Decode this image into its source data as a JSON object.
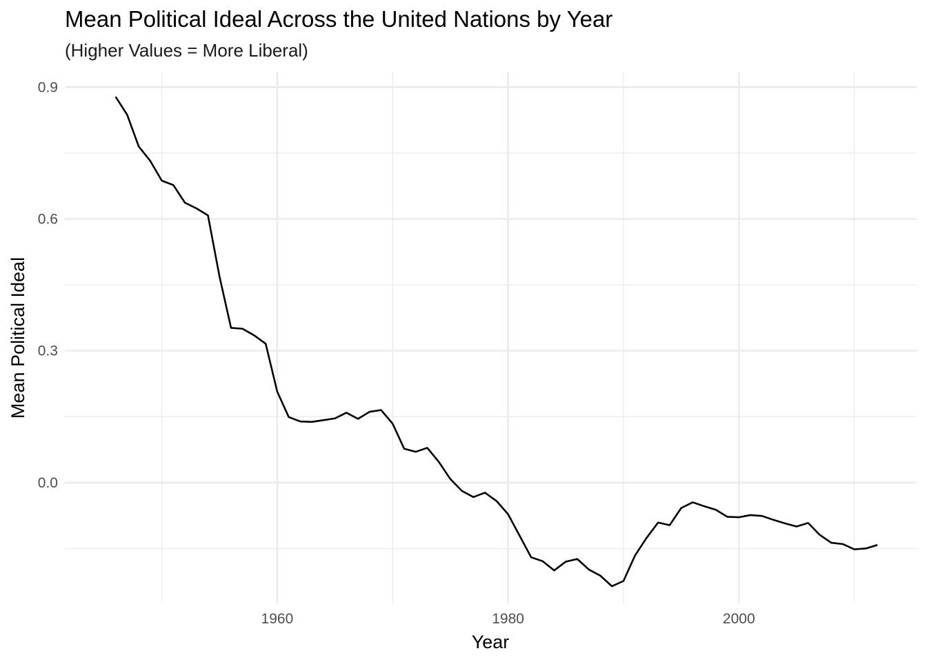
{
  "chart_data": {
    "type": "line",
    "title": "Mean Political Ideal Across the United Nations by Year",
    "subtitle": "(Higher Values = More Liberal)",
    "xlabel": "Year",
    "ylabel": "Mean Political Ideal",
    "xlim": [
      1941.6,
      2015.4
    ],
    "ylim": [
      -0.275,
      0.935
    ],
    "x_ticks": [
      1960,
      1980,
      2000
    ],
    "x_tick_labels": [
      "1960",
      "1980",
      "2000"
    ],
    "x_minor_ticks": [
      1950,
      1970,
      1990,
      2010
    ],
    "y_ticks": [
      0.0,
      0.3,
      0.6,
      0.9
    ],
    "y_tick_labels": [
      "0.0",
      "0.3",
      "0.6",
      "0.9"
    ],
    "y_minor_ticks": [
      -0.15,
      0.15,
      0.45,
      0.75
    ],
    "grid": true,
    "legend": "none",
    "line_color": "#000000",
    "x": [
      1946,
      1947,
      1948,
      1949,
      1950,
      1951,
      1952,
      1953,
      1954,
      1955,
      1956,
      1957,
      1958,
      1959,
      1960,
      1961,
      1962,
      1963,
      1964,
      1965,
      1966,
      1967,
      1968,
      1969,
      1970,
      1971,
      1972,
      1973,
      1974,
      1975,
      1976,
      1977,
      1978,
      1979,
      1980,
      1981,
      1982,
      1983,
      1984,
      1985,
      1986,
      1987,
      1988,
      1989,
      1990,
      1991,
      1992,
      1993,
      1994,
      1995,
      1996,
      1997,
      1998,
      1999,
      2000,
      2001,
      2002,
      2003,
      2004,
      2005,
      2006,
      2007,
      2008,
      2009,
      2010,
      2011,
      2012
    ],
    "values": [
      0.878,
      0.837,
      0.765,
      0.732,
      0.687,
      0.677,
      0.637,
      0.624,
      0.608,
      0.469,
      0.352,
      0.35,
      0.335,
      0.316,
      0.207,
      0.149,
      0.139,
      0.138,
      0.142,
      0.146,
      0.159,
      0.145,
      0.161,
      0.165,
      0.134,
      0.077,
      0.07,
      0.079,
      0.047,
      0.008,
      -0.019,
      -0.033,
      -0.023,
      -0.042,
      -0.072,
      -0.121,
      -0.17,
      -0.179,
      -0.2,
      -0.18,
      -0.174,
      -0.198,
      -0.212,
      -0.236,
      -0.224,
      -0.166,
      -0.126,
      -0.091,
      -0.097,
      -0.058,
      -0.045,
      -0.054,
      -0.062,
      -0.078,
      -0.079,
      -0.074,
      -0.076,
      -0.085,
      -0.093,
      -0.1,
      -0.092,
      -0.119,
      -0.137,
      -0.14,
      -0.152,
      -0.15,
      -0.142
    ]
  }
}
